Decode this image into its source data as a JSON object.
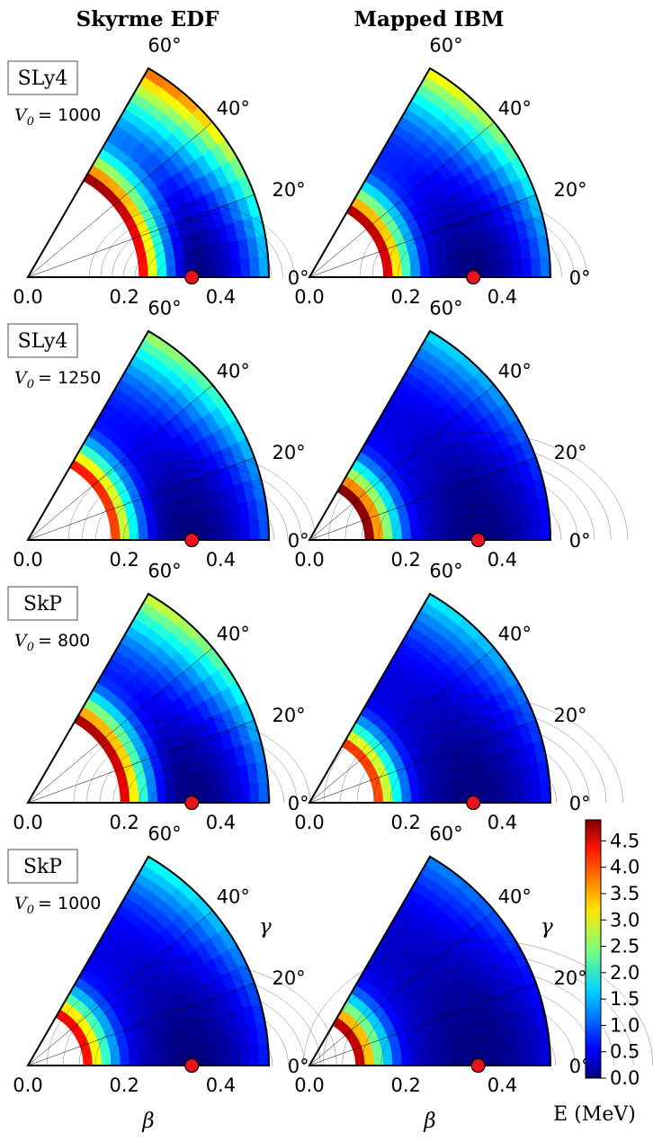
{
  "chart_data": {
    "type": "contour-polar-grid",
    "column_titles": [
      "Skyrme EDF",
      "Mapped IBM"
    ],
    "rows": [
      {
        "force": "SLy4",
        "v0_label": "V0 = 1000",
        "v0_prefix": "V",
        "v0_sub": "0",
        "v0_value": "= 1000",
        "edf": {
          "min_beta": 0.34,
          "min_gamma": 0,
          "inner_edge_beta": 0.24,
          "stiffness": 1.6,
          "cut_energy": 4.9
        },
        "ibm": {
          "min_beta": 0.34,
          "min_gamma": 0,
          "inner_edge_beta": 0.15,
          "stiffness": 1.3,
          "cut_energy": 4.9
        }
      },
      {
        "force": "SLy4",
        "v0_label": "V0 = 1250",
        "v0_prefix": "V",
        "v0_sub": "0",
        "v0_value": "= 1250",
        "edf": {
          "min_beta": 0.34,
          "min_gamma": 0,
          "inner_edge_beta": 0.17,
          "stiffness": 1.1,
          "cut_energy": 4.9
        },
        "ibm": {
          "min_beta": 0.35,
          "min_gamma": 0,
          "inner_edge_beta": 0.12,
          "stiffness": 0.75,
          "cut_energy": 4.9
        }
      },
      {
        "force": "SkP",
        "v0_label": "V0 = 800",
        "v0_prefix": "V",
        "v0_sub": "0",
        "v0_value": "= 800",
        "edf": {
          "min_beta": 0.34,
          "min_gamma": 0,
          "inner_edge_beta": 0.2,
          "stiffness": 1.2,
          "cut_energy": 4.9
        },
        "ibm": {
          "min_beta": 0.34,
          "min_gamma": 0,
          "inner_edge_beta": 0.13,
          "stiffness": 0.75,
          "cut_energy": 4.9
        }
      },
      {
        "force": "SkP",
        "v0_label": "V0 = 1000",
        "v0_prefix": "V",
        "v0_sub": "0",
        "v0_value": "= 1000",
        "edf": {
          "min_beta": 0.34,
          "min_gamma": 0,
          "inner_edge_beta": 0.11,
          "stiffness": 0.8,
          "cut_energy": 4.9
        },
        "ibm": {
          "min_beta": 0.35,
          "min_gamma": 0,
          "inner_edge_beta": 0.1,
          "stiffness": 0.55,
          "cut_energy": 4.9
        }
      }
    ],
    "beta_ticks": [
      "0.0",
      "0.2",
      "0.4"
    ],
    "beta_range": [
      0,
      0.5
    ],
    "gamma_ticks": [
      "0°",
      "20°",
      "40°",
      "60°"
    ],
    "gamma_range_deg": [
      0,
      60
    ],
    "xlabel": "β",
    "ylabel": "γ",
    "colorbar": {
      "label": "E (MeV)",
      "range": [
        0,
        4.9
      ],
      "ticks": [
        "0.0",
        "0.5",
        "1.0",
        "1.5",
        "2.0",
        "2.5",
        "3.0",
        "3.5",
        "4.0",
        "4.5"
      ],
      "colormap": "jet"
    },
    "marker_color": "#e8131b"
  }
}
